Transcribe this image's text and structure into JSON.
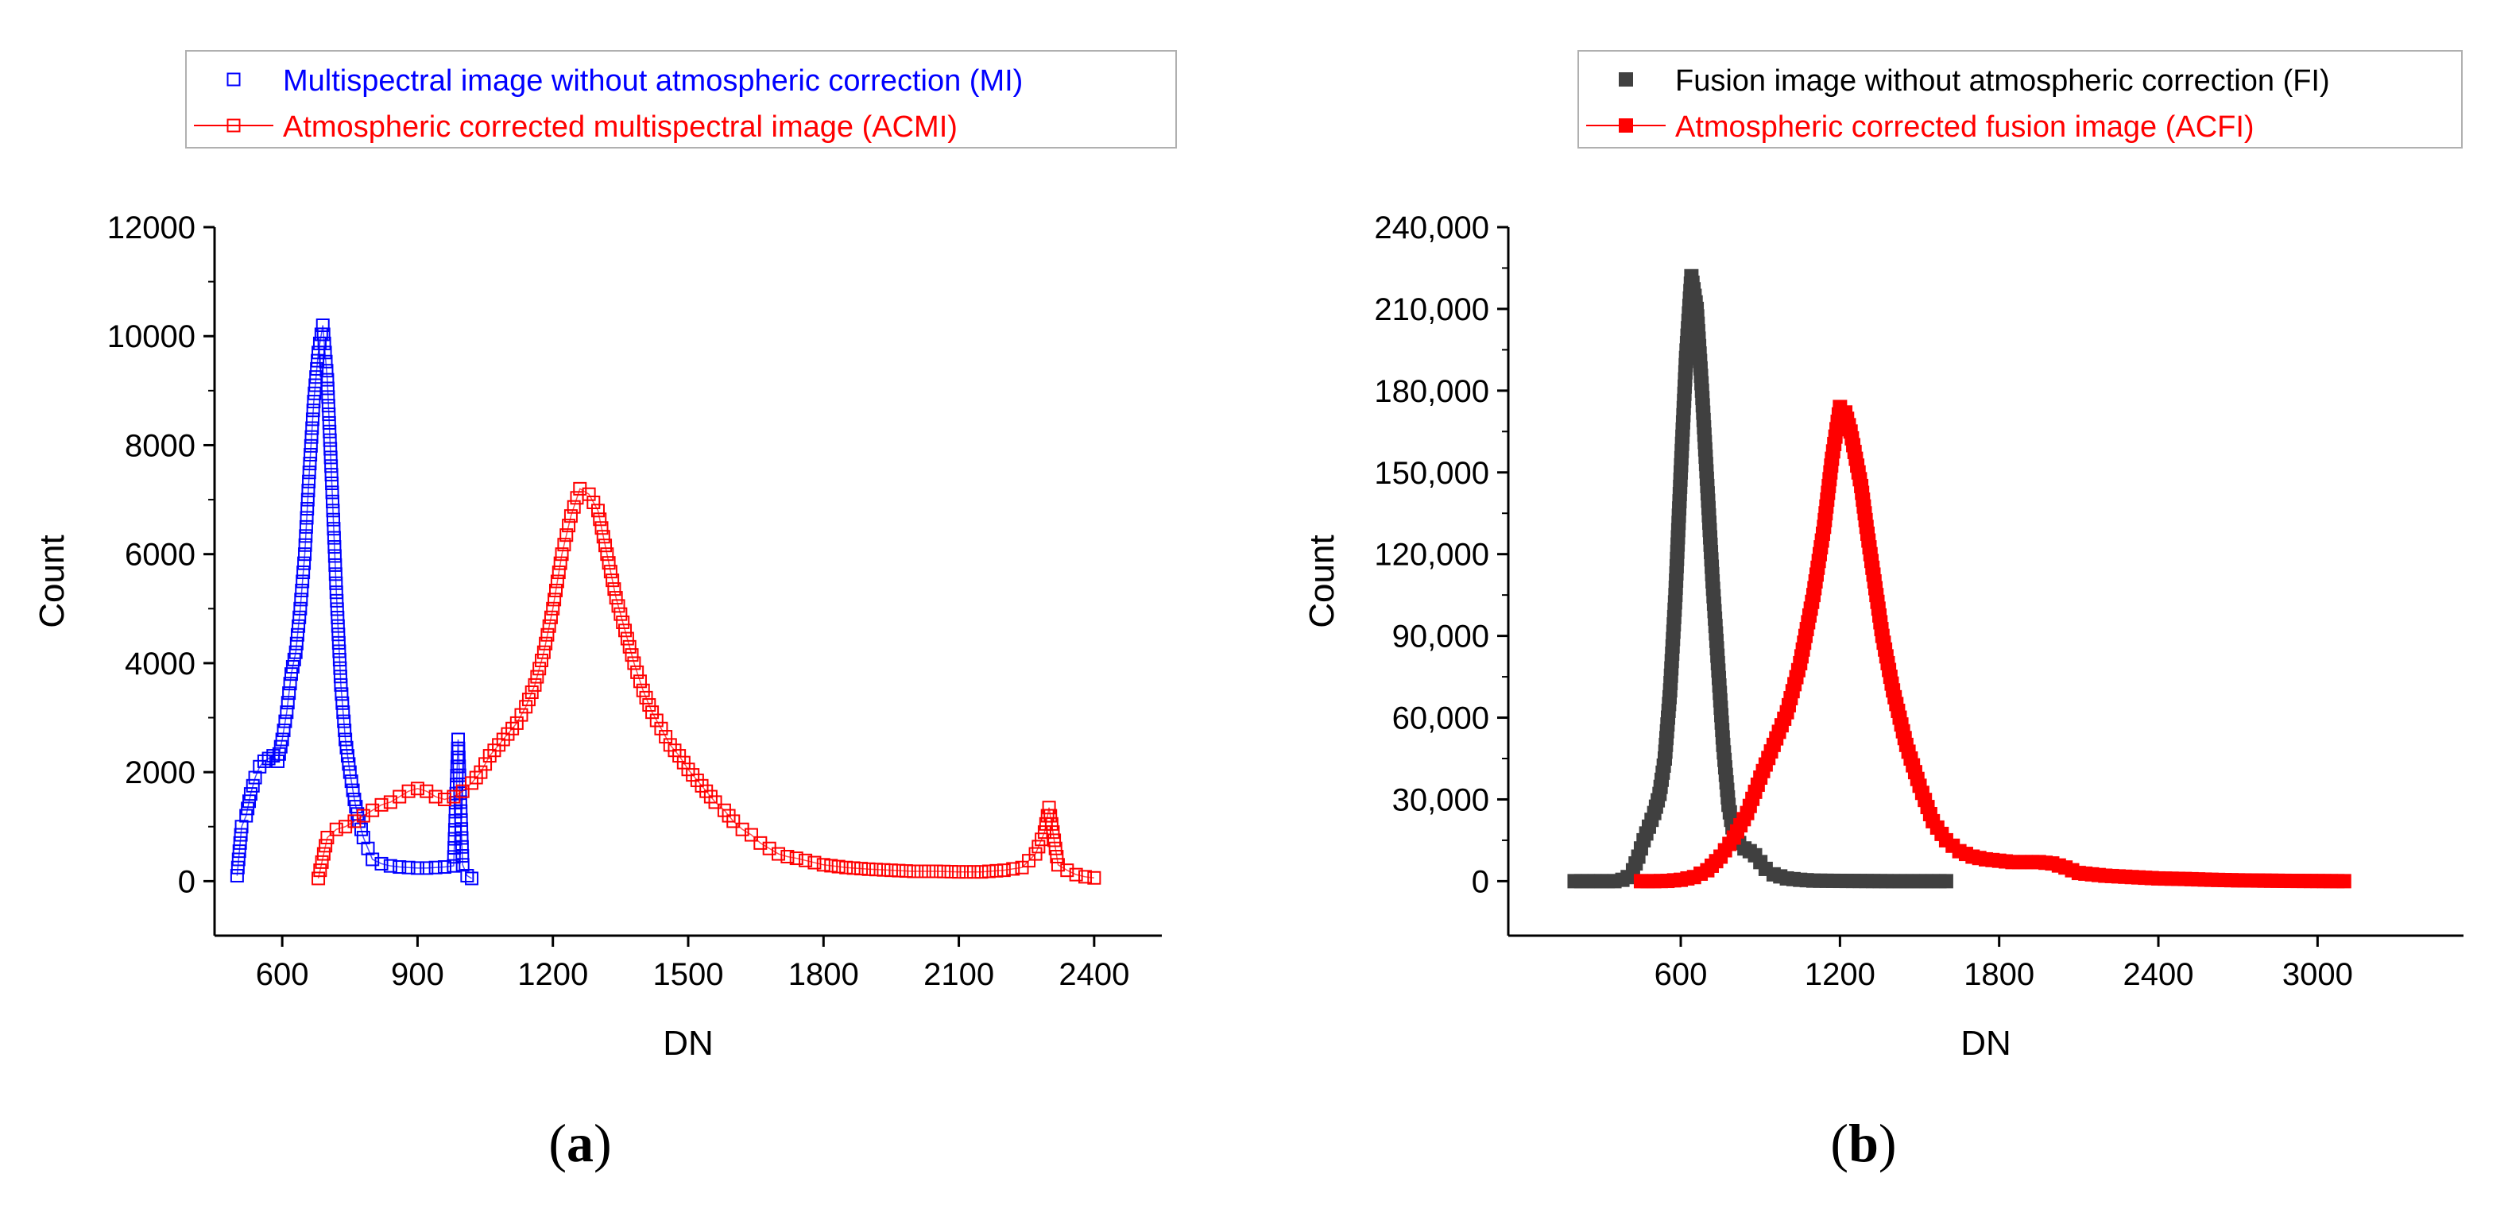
{
  "captions": {
    "a": "a",
    "b": "b"
  },
  "chart_data": [
    {
      "type": "scatter",
      "panel": "a",
      "xlabel": "DN",
      "ylabel": "Count",
      "xlim": [
        450,
        2550
      ],
      "ylim": [
        -1000,
        12000
      ],
      "xticks": [
        "600",
        "900",
        "1200",
        "1500",
        "1800",
        "2100",
        "2400"
      ],
      "yticks": [
        "0",
        "2000",
        "4000",
        "6000",
        "8000",
        "10000",
        "12000"
      ],
      "marker": "open-square",
      "legend": {
        "position": "top",
        "entries": [
          {
            "label": "Multispectral image without atmospheric correction (MI)",
            "color": "#0000ff"
          },
          {
            "label": "Atmospheric corrected multispectral image (ACMI)",
            "color": "#ff0000"
          }
        ]
      },
      "series": [
        {
          "name": "Multispectral image without atmospheric correction (MI)",
          "color": "#0000ff",
          "x": [
            500,
            510,
            520,
            530,
            540,
            550,
            560,
            570,
            580,
            590,
            600,
            610,
            620,
            630,
            640,
            650,
            660,
            670,
            680,
            690,
            700,
            710,
            720,
            730,
            740,
            750,
            760,
            770,
            780,
            790,
            800,
            820,
            840,
            860,
            880,
            900,
            920,
            940,
            960,
            980,
            990,
            1000,
            1010,
            1020
          ],
          "values": [
            100,
            1000,
            1200,
            1600,
            1900,
            2100,
            2200,
            2250,
            2300,
            2200,
            2600,
            3100,
            3800,
            4200,
            5000,
            6000,
            7500,
            8800,
            9700,
            10200,
            9200,
            7300,
            5300,
            3600,
            2600,
            2000,
            1500,
            1100,
            800,
            600,
            400,
            320,
            280,
            260,
            250,
            240,
            240,
            250,
            260,
            280,
            2600,
            300,
            100,
            50
          ]
        },
        {
          "name": "Atmospheric corrected multispectral image (ACMI)",
          "color": "#ff0000",
          "x": [
            680,
            700,
            720,
            740,
            760,
            780,
            800,
            820,
            840,
            860,
            880,
            900,
            920,
            940,
            960,
            980,
            1000,
            1020,
            1040,
            1060,
            1080,
            1100,
            1120,
            1140,
            1160,
            1180,
            1200,
            1220,
            1240,
            1260,
            1280,
            1300,
            1320,
            1340,
            1360,
            1380,
            1400,
            1420,
            1440,
            1460,
            1480,
            1500,
            1520,
            1540,
            1560,
            1580,
            1600,
            1620,
            1640,
            1660,
            1680,
            1700,
            1720,
            1740,
            1760,
            1780,
            1800,
            1850,
            1900,
            1950,
            2000,
            2050,
            2100,
            2150,
            2200,
            2240,
            2270,
            2290,
            2300,
            2320,
            2340,
            2360,
            2380,
            2400
          ],
          "values": [
            50,
            800,
            950,
            1000,
            1100,
            1200,
            1300,
            1400,
            1450,
            1550,
            1650,
            1700,
            1650,
            1550,
            1500,
            1550,
            1650,
            1800,
            2000,
            2300,
            2500,
            2700,
            2900,
            3200,
            3600,
            4200,
            5000,
            6000,
            6700,
            7200,
            7100,
            6800,
            6000,
            5200,
            4600,
            4000,
            3500,
            3100,
            2800,
            2500,
            2300,
            2050,
            1850,
            1650,
            1450,
            1300,
            1100,
            950,
            850,
            700,
            600,
            500,
            450,
            420,
            380,
            340,
            300,
            250,
            220,
            200,
            180,
            180,
            170,
            170,
            200,
            250,
            500,
            900,
            1350,
            300,
            200,
            120,
            80,
            60
          ]
        }
      ]
    },
    {
      "type": "scatter",
      "panel": "b",
      "xlabel": "DN",
      "ylabel": "Count",
      "xlim": [
        -50,
        3550
      ],
      "ylim": [
        -20000,
        240000
      ],
      "xticks": [
        "600",
        "1200",
        "1800",
        "2400",
        "3000"
      ],
      "yticks": [
        "0",
        "30,000",
        "60,000",
        "90,000",
        "120,000",
        "150,000",
        "180,000",
        "210,000",
        "240,000"
      ],
      "marker": "filled-square",
      "legend": {
        "position": "top",
        "entries": [
          {
            "label": "Fusion image without atmospheric correction (FI)",
            "color": "#404040"
          },
          {
            "label": "Atmospheric corrected fusion image (ACFI)",
            "color": "#ff0000"
          }
        ]
      },
      "series": [
        {
          "name": "Fusion image without atmospheric correction (FI)",
          "color": "#404040",
          "x": [
            200,
            250,
            300,
            350,
            380,
            400,
            420,
            440,
            460,
            480,
            500,
            520,
            540,
            560,
            580,
            600,
            620,
            640,
            660,
            680,
            700,
            720,
            740,
            760,
            780,
            800,
            820,
            840,
            860,
            880,
            900,
            920,
            950,
            1000,
            1050,
            1100,
            1200,
            1300,
            1400,
            1500,
            1600
          ],
          "values": [
            0,
            0,
            0,
            0,
            500,
            1500,
            4000,
            9000,
            15000,
            20000,
            25000,
            32000,
            45000,
            70000,
            105000,
            150000,
            192000,
            222000,
            210000,
            180000,
            145000,
            110000,
            80000,
            50000,
            28000,
            17000,
            14000,
            12000,
            11000,
            9500,
            7000,
            4500,
            2500,
            1000,
            500,
            200,
            100,
            50,
            0,
            0,
            0
          ]
        },
        {
          "name": "Atmospheric corrected fusion image (ACFI)",
          "color": "#ff0000",
          "x": [
            450,
            500,
            550,
            600,
            650,
            700,
            750,
            800,
            850,
            900,
            950,
            1000,
            1050,
            1100,
            1140,
            1170,
            1200,
            1220,
            1240,
            1260,
            1280,
            1300,
            1330,
            1360,
            1400,
            1450,
            1500,
            1550,
            1600,
            1650,
            1700,
            1750,
            1800,
            1850,
            1900,
            1950,
            2000,
            2050,
            2100,
            2200,
            2300,
            2400,
            2500,
            2600,
            2700,
            2800,
            2900,
            3000,
            3100
          ],
          "values": [
            0,
            0,
            100,
            500,
            1500,
            4000,
            9000,
            16000,
            25000,
            38000,
            50000,
            62000,
            80000,
            105000,
            130000,
            155000,
            174000,
            172000,
            165000,
            155000,
            145000,
            130000,
            110000,
            90000,
            70000,
            50000,
            35000,
            22000,
            15000,
            11000,
            9000,
            8000,
            7500,
            7000,
            7000,
            7000,
            6500,
            5000,
            3000,
            2000,
            1500,
            1000,
            800,
            500,
            300,
            200,
            100,
            50,
            0
          ]
        }
      ]
    }
  ]
}
